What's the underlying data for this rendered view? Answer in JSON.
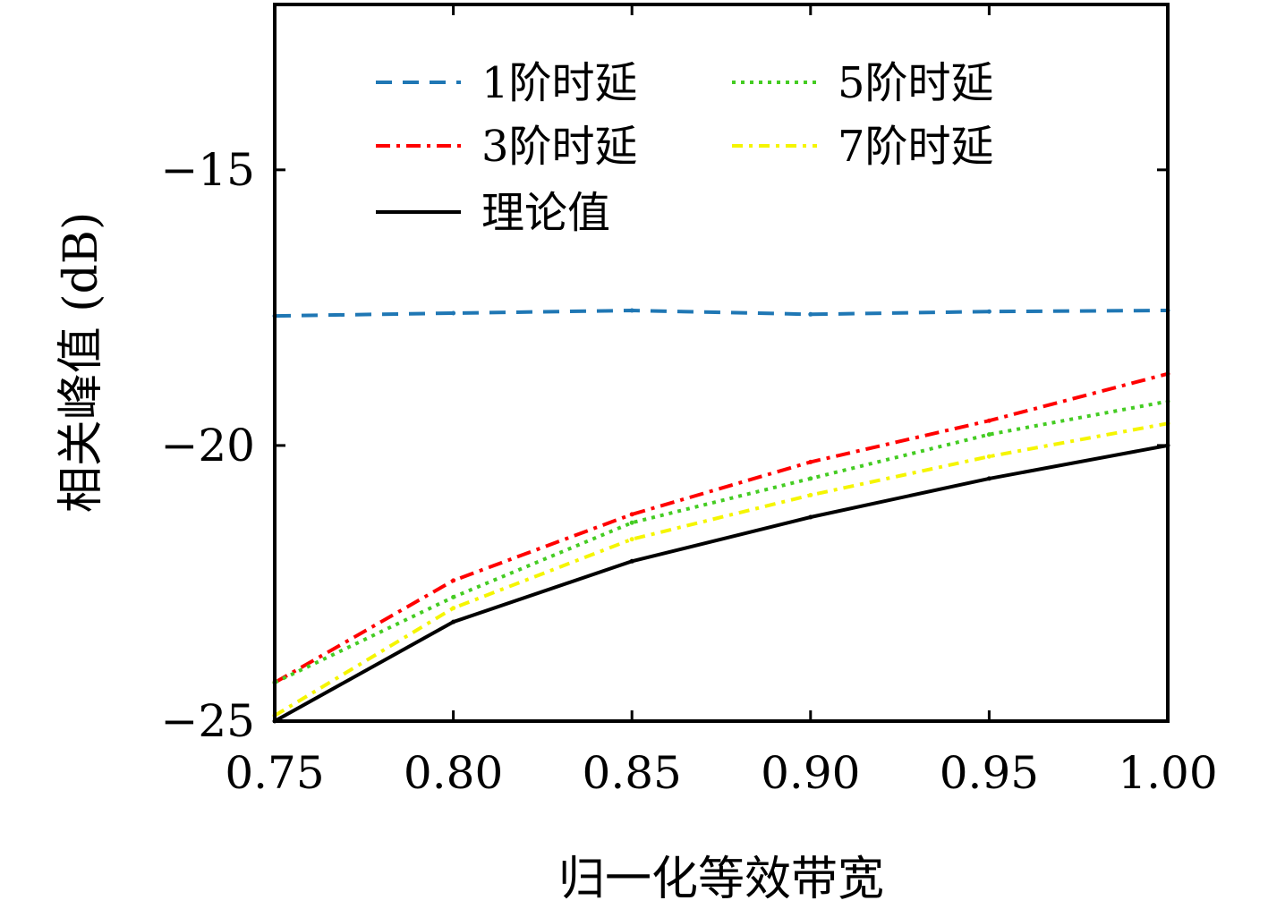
{
  "chart_data": {
    "type": "line",
    "title": "",
    "xlabel": "归一化等效带宽",
    "ylabel": "相关峰值 (dB)",
    "x": [
      0.75,
      0.8,
      0.85,
      0.9,
      0.95,
      1.0
    ],
    "xlim": [
      0.75,
      1.0
    ],
    "ylim": [
      -25,
      -12
    ],
    "xticks": [
      0.75,
      0.8,
      0.85,
      0.9,
      0.95,
      1.0
    ],
    "xtick_labels": [
      "0.75",
      "0.80",
      "0.85",
      "0.90",
      "0.95",
      "1.00"
    ],
    "yticks": [
      -25,
      -20,
      -15
    ],
    "ytick_labels": [
      "−25",
      "−20",
      "−15"
    ],
    "grid": false,
    "legend_position": "top",
    "series": [
      {
        "name": "1阶时延",
        "color": "#1f77b4",
        "dash": "dashed",
        "values": [
          -17.65,
          -17.6,
          -17.55,
          -17.62,
          -17.57,
          -17.55
        ]
      },
      {
        "name": "3阶时延",
        "color": "#ff0000",
        "dash": "dashdot",
        "values": [
          -24.3,
          -22.45,
          -21.25,
          -20.3,
          -19.55,
          -18.7
        ]
      },
      {
        "name": "5阶时延",
        "color": "#44cc22",
        "dash": "dotted",
        "values": [
          -24.3,
          -22.75,
          -21.4,
          -20.6,
          -19.8,
          -19.2
        ]
      },
      {
        "name": "7阶时延",
        "color": "#f5f500",
        "dash": "dashdot2",
        "values": [
          -24.9,
          -22.95,
          -21.7,
          -20.9,
          -20.2,
          -19.6
        ]
      },
      {
        "name": "理论值",
        "color": "#000000",
        "dash": "solid",
        "values": [
          -25.0,
          -23.2,
          -22.1,
          -21.3,
          -20.6,
          -20.0
        ]
      }
    ]
  }
}
